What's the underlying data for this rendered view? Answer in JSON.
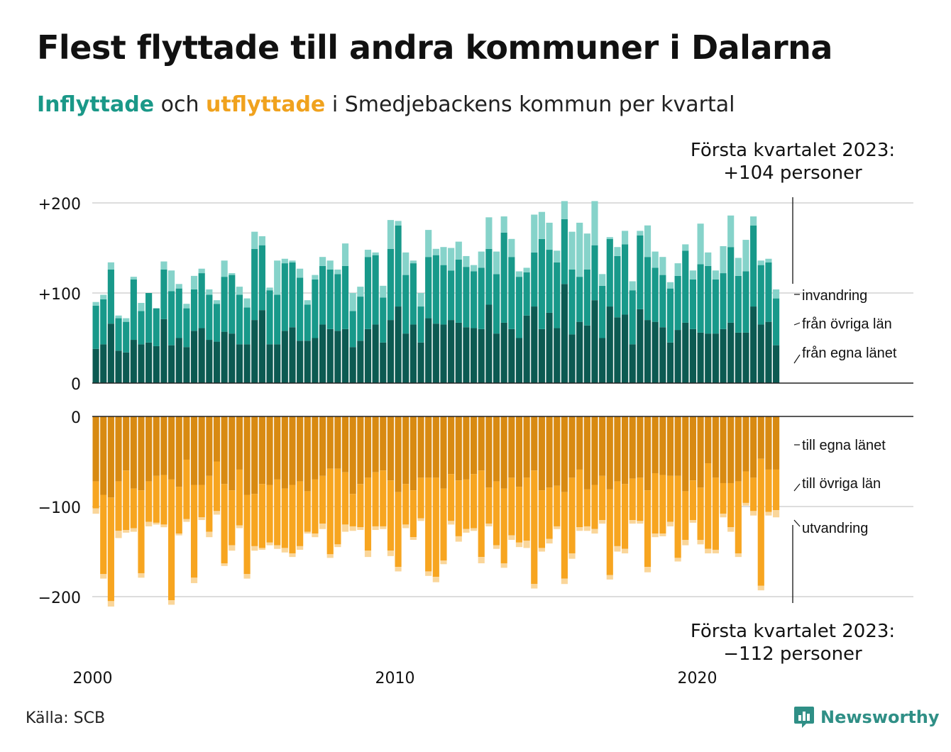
{
  "title": "Flest flyttade till andra kommuner i Dalarna",
  "subtitle": {
    "in_word": "Inflyttade",
    "and_word": "och",
    "out_word": "utflyttade",
    "rest": "i Smedjebackens kommun per kvartal"
  },
  "annotation_top": {
    "line1": "Första kvartalet 2023:",
    "line2": "+104 personer"
  },
  "annotation_bottom": {
    "line1": "Första kvartalet 2023:",
    "line2": "−112 personer"
  },
  "source": "Källa: SCB",
  "brand": {
    "name": "Newsworthy",
    "logo_icon": "newsworthy-chart-bubble-icon"
  },
  "colors": {
    "in_own": "#0c5a52",
    "in_other": "#18998a",
    "in_imm": "#86d3ca",
    "out_own": "#d88a12",
    "out_other": "#f7a520",
    "out_emig": "#fad69a",
    "grid": "#dddddd",
    "axis": "#222222"
  },
  "chart_data": {
    "type": "bar",
    "stacked": true,
    "x_unit": "quarter",
    "x_start": "2000 Q1",
    "x_end": "2023 Q1",
    "x_ticks": [
      "2000",
      "2010",
      "2020"
    ],
    "panels": [
      {
        "name": "Inflyttade",
        "y_ticks": [
          0,
          100,
          200
        ],
        "y_tick_labels": [
          "0",
          "+100",
          "+200"
        ],
        "ylim": [
          0,
          200
        ],
        "series": [
          {
            "name": "från egna länet",
            "values": [
              38,
              43,
              66,
              36,
              34,
              48,
              43,
              45,
              41,
              71,
              42,
              50,
              40,
              58,
              61,
              48,
              46,
              57,
              55,
              43,
              43,
              70,
              81,
              43,
              43,
              58,
              62,
              47,
              47,
              50,
              65,
              60,
              58,
              60,
              40,
              47,
              60,
              65,
              45,
              70,
              85,
              55,
              65,
              45,
              72,
              66,
              65,
              70,
              67,
              62,
              61,
              60,
              87,
              55,
              67,
              60,
              50,
              75,
              85,
              60,
              78,
              61,
              110,
              54,
              68,
              64,
              92,
              50,
              85,
              73,
              76,
              43,
              82,
              70,
              68,
              62,
              45,
              59,
              67,
              60,
              56,
              55,
              55,
              60,
              67,
              56,
              56,
              85,
              65,
              68,
              42
            ]
          },
          {
            "name": "från övriga län",
            "values": [
              48,
              50,
              60,
              36,
              34,
              67,
              37,
              55,
              42,
              55,
              60,
              55,
              43,
              46,
              61,
              50,
              42,
              61,
              65,
              55,
              41,
              79,
              72,
              60,
              55,
              75,
              72,
              70,
              40,
              65,
              65,
              66,
              63,
              70,
              40,
              49,
              80,
              77,
              50,
              79,
              90,
              65,
              68,
              40,
              68,
              76,
              66,
              55,
              70,
              67,
              63,
              68,
              62,
              66,
              100,
              80,
              68,
              48,
              60,
              100,
              70,
              73,
              72,
              72,
              50,
              62,
              61,
              58,
              75,
              68,
              78,
              60,
              82,
              70,
              60,
              58,
              60,
              60,
              80,
              55,
              76,
              75,
              60,
              62,
              84,
              63,
              68,
              90,
              66,
              66,
              52
            ]
          },
          {
            "name": "invandring",
            "values": [
              4,
              5,
              8,
              3,
              4,
              3,
              9,
              0,
              0,
              9,
              23,
              5,
              5,
              15,
              5,
              6,
              4,
              18,
              2,
              9,
              10,
              19,
              10,
              3,
              38,
              5,
              2,
              10,
              5,
              5,
              10,
              10,
              5,
              25,
              20,
              11,
              8,
              3,
              13,
              32,
              5,
              25,
              3,
              15,
              30,
              7,
              20,
              25,
              20,
              12,
              7,
              18,
              35,
              25,
              18,
              20,
              6,
              5,
              42,
              30,
              30,
              13,
              20,
              42,
              60,
              40,
              49,
              13,
              2,
              10,
              15,
              10,
              5,
              35,
              18,
              20,
              7,
              14,
              7,
              10,
              45,
              15,
              10,
              30,
              35,
              20,
              35,
              10,
              5,
              4,
              10
            ]
          }
        ]
      },
      {
        "name": "Utflyttade",
        "y_ticks": [
          0,
          -100,
          -200
        ],
        "y_tick_labels": [
          "0",
          "−100",
          "−200"
        ],
        "ylim": [
          -200,
          0
        ],
        "series": [
          {
            "name": "till egna länet",
            "values": [
              -72,
              -87,
              -90,
              -72,
              -60,
              -80,
              -82,
              -72,
              -66,
              -65,
              -70,
              -78,
              -48,
              -76,
              -76,
              -66,
              -50,
              -75,
              -82,
              -59,
              -87,
              -86,
              -75,
              -76,
              -70,
              -80,
              -76,
              -72,
              -83,
              -70,
              -66,
              -58,
              -58,
              -62,
              -86,
              -75,
              -68,
              -62,
              -60,
              -71,
              -84,
              -75,
              -82,
              -68,
              -68,
              -68,
              -80,
              -64,
              -71,
              -70,
              -64,
              -60,
              -79,
              -72,
              -80,
              -68,
              -78,
              -68,
              -60,
              -82,
              -79,
              -77,
              -84,
              -68,
              -59,
              -81,
              -76,
              -66,
              -81,
              -72,
              -75,
              -69,
              -68,
              -82,
              -63,
              -65,
              -66,
              -66,
              -83,
              -71,
              -79,
              -52,
              -68,
              -74,
              -74,
              -72,
              -61,
              -68,
              -47,
              -59,
              -59
            ]
          },
          {
            "name": "till övriga län",
            "values": [
              -30,
              -88,
              -115,
              -55,
              -66,
              -44,
              -92,
              -45,
              -52,
              -55,
              -134,
              -52,
              -66,
              -103,
              -36,
              -62,
              -55,
              -88,
              -61,
              -62,
              -88,
              -58,
              -71,
              -64,
              -73,
              -66,
              -76,
              -72,
              -45,
              -60,
              -53,
              -95,
              -84,
              -58,
              -36,
              -48,
              -81,
              -60,
              -62,
              -78,
              -83,
              -45,
              -52,
              -45,
              -104,
              -110,
              -80,
              -52,
              -62,
              -55,
              -60,
              -96,
              -40,
              -71,
              -83,
              -64,
              -62,
              -70,
              -126,
              -64,
              -57,
              -45,
              -96,
              -84,
              -64,
              -41,
              -49,
              -49,
              -95,
              -72,
              -72,
              -46,
              -48,
              -85,
              -67,
              -65,
              -51,
              -91,
              -54,
              -44,
              -58,
              -95,
              -80,
              -34,
              -49,
              -80,
              -35,
              -37,
              -141,
              -47,
              -45
            ]
          },
          {
            "name": "utvandring",
            "values": [
              -6,
              -5,
              -6,
              -8,
              -3,
              -4,
              -5,
              -5,
              -2,
              -3,
              -5,
              -2,
              -3,
              -6,
              -3,
              -6,
              -4,
              -3,
              -6,
              -3,
              -5,
              -5,
              -2,
              -3,
              -4,
              -5,
              -4,
              -4,
              -2,
              -4,
              -6,
              -4,
              -3,
              -8,
              -5,
              -3,
              -7,
              -4,
              -3,
              -6,
              -5,
              -4,
              -3,
              -3,
              -5,
              -6,
              -4,
              -4,
              -6,
              -4,
              -3,
              -7,
              -3,
              -4,
              -5,
              -5,
              -5,
              -8,
              -5,
              -4,
              -5,
              -3,
              -6,
              -6,
              -4,
              -5,
              -5,
              -4,
              -5,
              -6,
              -5,
              -4,
              -3,
              -6,
              -4,
              -3,
              -5,
              -4,
              -6,
              -3,
              -5,
              -5,
              -4,
              -4,
              -5,
              -4,
              -3,
              -5,
              -5,
              -4,
              -8
            ]
          }
        ]
      }
    ]
  }
}
